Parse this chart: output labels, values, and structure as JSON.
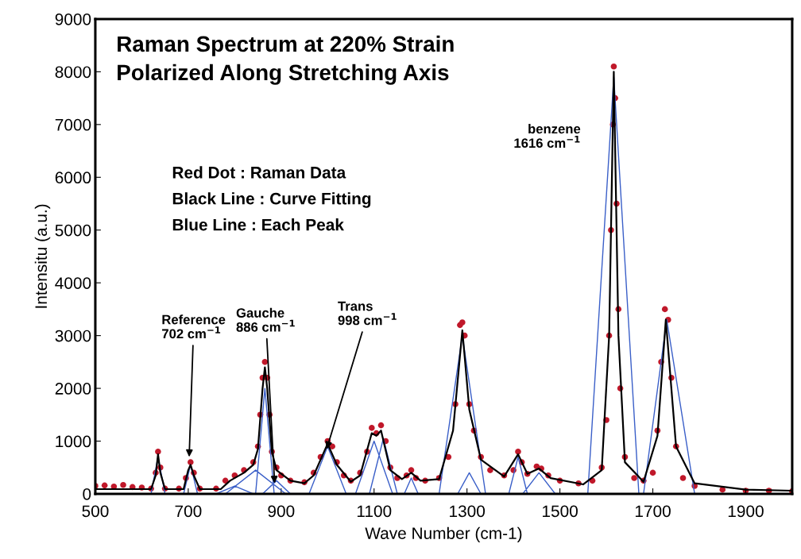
{
  "chart_data": {
    "type": "scatter",
    "title": "Raman Spectrum at 220% Strain",
    "subtitle": "Polarized Along Stretching Axis",
    "xlabel": "Wave Number (cm-1)",
    "ylabel": "Intensitu (a.u.)",
    "xlim": [
      500,
      2000
    ],
    "xticks": [
      500,
      700,
      900,
      1100,
      1300,
      1500,
      1700,
      1900
    ],
    "ylim": [
      0,
      9000
    ],
    "yticks": [
      0,
      1000,
      2000,
      3000,
      4000,
      5000,
      6000,
      7000,
      8000,
      9000
    ],
    "grid": false,
    "series": [
      {
        "color": "#c0182a",
        "marker": "circle",
        "x": [
          500,
          520,
          540,
          560,
          580,
          600,
          620,
          630,
          635,
          640,
          650,
          680,
          695,
          705,
          712,
          725,
          760,
          780,
          800,
          820,
          840,
          850,
          855,
          860,
          865,
          870,
          875,
          880,
          890,
          900,
          920,
          950,
          970,
          985,
          1000,
          1010,
          1020,
          1035,
          1050,
          1070,
          1085,
          1095,
          1105,
          1115,
          1125,
          1135,
          1150,
          1170,
          1180,
          1190,
          1210,
          1240,
          1260,
          1275,
          1285,
          1290,
          1295,
          1305,
          1315,
          1330,
          1350,
          1380,
          1400,
          1410,
          1418,
          1430,
          1450,
          1460,
          1475,
          1500,
          1540,
          1570,
          1590,
          1600,
          1606,
          1610,
          1614,
          1616,
          1619,
          1622,
          1626,
          1630,
          1640,
          1660,
          1680,
          1700,
          1710,
          1718,
          1726,
          1733,
          1740,
          1750,
          1765,
          1790,
          1850,
          1900,
          1950,
          2000
        ],
        "values": [
          150,
          160,
          140,
          170,
          130,
          120,
          100,
          400,
          800,
          500,
          100,
          100,
          300,
          600,
          400,
          100,
          100,
          250,
          350,
          450,
          600,
          900,
          1500,
          2200,
          2500,
          2200,
          1500,
          800,
          500,
          350,
          250,
          220,
          400,
          700,
          1000,
          900,
          600,
          350,
          250,
          400,
          800,
          1250,
          1150,
          1300,
          1000,
          500,
          300,
          350,
          450,
          300,
          250,
          300,
          700,
          1700,
          3200,
          3250,
          3000,
          1700,
          1200,
          700,
          450,
          350,
          450,
          800,
          600,
          380,
          520,
          480,
          350,
          250,
          200,
          250,
          500,
          1400,
          3000,
          5000,
          7000,
          8100,
          7500,
          5500,
          3500,
          2000,
          700,
          300,
          250,
          400,
          1200,
          2500,
          3500,
          3300,
          2200,
          900,
          300,
          150,
          80,
          60,
          60,
          50
        ]
      },
      {
        "type": "line",
        "color": "#000000",
        "marker": "none",
        "x": [
          500,
          620,
          630,
          635,
          640,
          650,
          690,
          700,
          705,
          712,
          725,
          770,
          790,
          820,
          840,
          850,
          860,
          865,
          870,
          880,
          890,
          920,
          950,
          970,
          1000,
          1020,
          1050,
          1070,
          1095,
          1105,
          1115,
          1135,
          1160,
          1180,
          1200,
          1240,
          1270,
          1290,
          1305,
          1330,
          1380,
          1410,
          1430,
          1455,
          1480,
          1550,
          1590,
          1606,
          1616,
          1626,
          1640,
          1680,
          1710,
          1728,
          1750,
          1790,
          1900,
          2000
        ],
        "values": [
          90,
          90,
          350,
          750,
          400,
          90,
          90,
          450,
          550,
          350,
          90,
          90,
          250,
          400,
          550,
          850,
          2000,
          2400,
          2000,
          800,
          450,
          250,
          200,
          350,
          950,
          550,
          230,
          350,
          1150,
          1100,
          1200,
          450,
          280,
          400,
          250,
          280,
          1200,
          3100,
          1600,
          650,
          330,
          750,
          380,
          480,
          300,
          180,
          450,
          3000,
          8000,
          3000,
          600,
          230,
          1100,
          3300,
          900,
          200,
          80,
          60
        ]
      },
      {
        "type": "line",
        "color": "#3a5fc8",
        "marker": "none",
        "x": [
          620,
          635,
          650,
          null,
          690,
          705,
          720,
          null,
          760,
          800,
          840,
          null,
          780,
          845,
          910,
          null,
          845,
          865,
          885,
          null,
          860,
          890,
          920,
          null,
          960,
          1000,
          1040,
          null,
          1060,
          1100,
          1140,
          null,
          1090,
          1120,
          1150,
          null,
          1165,
          1180,
          1195,
          null,
          1240,
          1290,
          1340,
          null,
          1280,
          1305,
          1330,
          null,
          1390,
          1410,
          1430,
          null,
          1420,
          1455,
          1490,
          null,
          1560,
          1616,
          1670,
          null,
          1680,
          1730,
          1790
        ],
        "values": [
          0,
          700,
          0,
          null,
          0,
          550,
          0,
          null,
          0,
          150,
          0,
          null,
          0,
          450,
          0,
          null,
          0,
          2000,
          0,
          null,
          0,
          250,
          0,
          null,
          0,
          900,
          0,
          null,
          0,
          1000,
          0,
          null,
          0,
          1050,
          0,
          null,
          0,
          300,
          0,
          null,
          0,
          3000,
          0,
          null,
          0,
          400,
          0,
          null,
          0,
          700,
          0,
          null,
          0,
          400,
          0,
          null,
          0,
          7900,
          0,
          null,
          0,
          3300,
          0
        ]
      }
    ],
    "annotations": [
      "Red Dot : Raman Data",
      "Black Line : Curve Fitting",
      "Blue Line : Each Peak",
      {
        "text": "Reference\n702 cm$^{−1}$",
        "x": 702,
        "y": 700
      },
      {
        "text": "Gauche\n886 cm$^{−1}$",
        "x": 886,
        "y": 200
      },
      {
        "text": "Trans\n998 cm$^{−1}$",
        "x": 998,
        "y": 850
      },
      {
        "text": "benzene\n1616 cm$^{−1}$",
        "x": 1616,
        "y": 6300
      }
    ]
  }
}
